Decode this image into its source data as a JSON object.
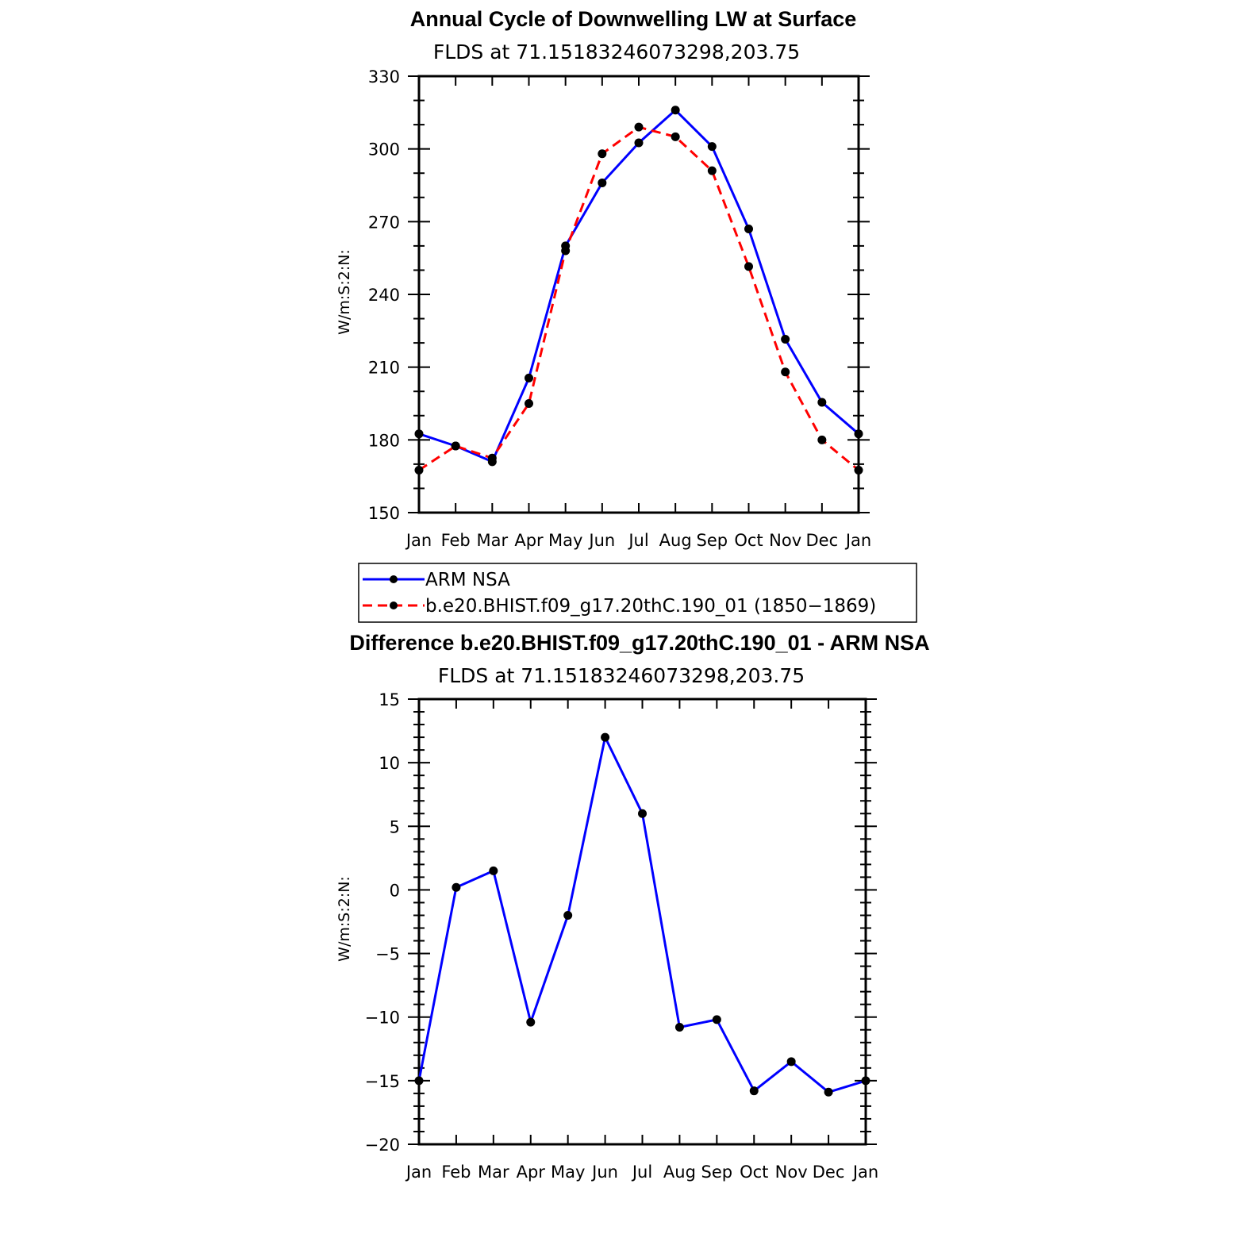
{
  "figure": {
    "title": "Annual Cycle of Downwelling LW at Surface",
    "difference_title": "Difference b.e20.BHIST.f09_g17.20thC.190_01 - ARM NSA"
  },
  "legend": {
    "entries": [
      {
        "label": "ARM NSA",
        "color": "#0000ff",
        "dash": "solid"
      },
      {
        "label": "b.e20.BHIST.f09_g17.20thC.190_01 (1850−1869)",
        "color": "#ff0000",
        "dash": "dashed"
      }
    ]
  },
  "chart_data": [
    {
      "type": "line",
      "title": "Annual Cycle of Downwelling LW at Surface",
      "subtitle": "FLDS at 71.15183246073298,203.75",
      "xlabel": "",
      "ylabel": "W/m:S:2:N:",
      "categories": [
        "Jan",
        "Feb",
        "Mar",
        "Apr",
        "May",
        "Jun",
        "Jul",
        "Aug",
        "Sep",
        "Oct",
        "Nov",
        "Dec",
        "Jan"
      ],
      "ylim": [
        150,
        330
      ],
      "yticks": [
        150,
        180,
        210,
        240,
        270,
        300,
        330
      ],
      "series": [
        {
          "name": "ARM NSA",
          "color": "#0000ff",
          "dash": "solid",
          "values": [
            182.5,
            177.5,
            171,
            205.5,
            260,
            286,
            302.5,
            316,
            301,
            267,
            221.5,
            195.5,
            182.5
          ]
        },
        {
          "name": "b.e20.BHIST.f09_g17.20thC.190_01 (1850−1869)",
          "color": "#ff0000",
          "dash": "dashed",
          "values": [
            167.5,
            177.5,
            172.5,
            195,
            258,
            298,
            309,
            305,
            291,
            251.5,
            208,
            180,
            167.5
          ]
        }
      ]
    },
    {
      "type": "line",
      "title": "Difference b.e20.BHIST.f09_g17.20thC.190_01 - ARM NSA",
      "subtitle": "FLDS at 71.15183246073298,203.75",
      "xlabel": "",
      "ylabel": "W/m:S:2:N:",
      "categories": [
        "Jan",
        "Feb",
        "Mar",
        "Apr",
        "May",
        "Jun",
        "Jul",
        "Aug",
        "Sep",
        "Oct",
        "Nov",
        "Dec",
        "Jan"
      ],
      "ylim": [
        -20,
        15
      ],
      "yticks": [
        -20,
        -15,
        -10,
        -5,
        0,
        5,
        10,
        15
      ],
      "series": [
        {
          "name": "Difference",
          "color": "#0000ff",
          "dash": "solid",
          "values": [
            -15,
            0.2,
            1.5,
            -10.4,
            -2,
            12,
            6,
            -10.8,
            -10.2,
            -15.8,
            -13.5,
            -15.9,
            -15
          ]
        }
      ]
    }
  ]
}
